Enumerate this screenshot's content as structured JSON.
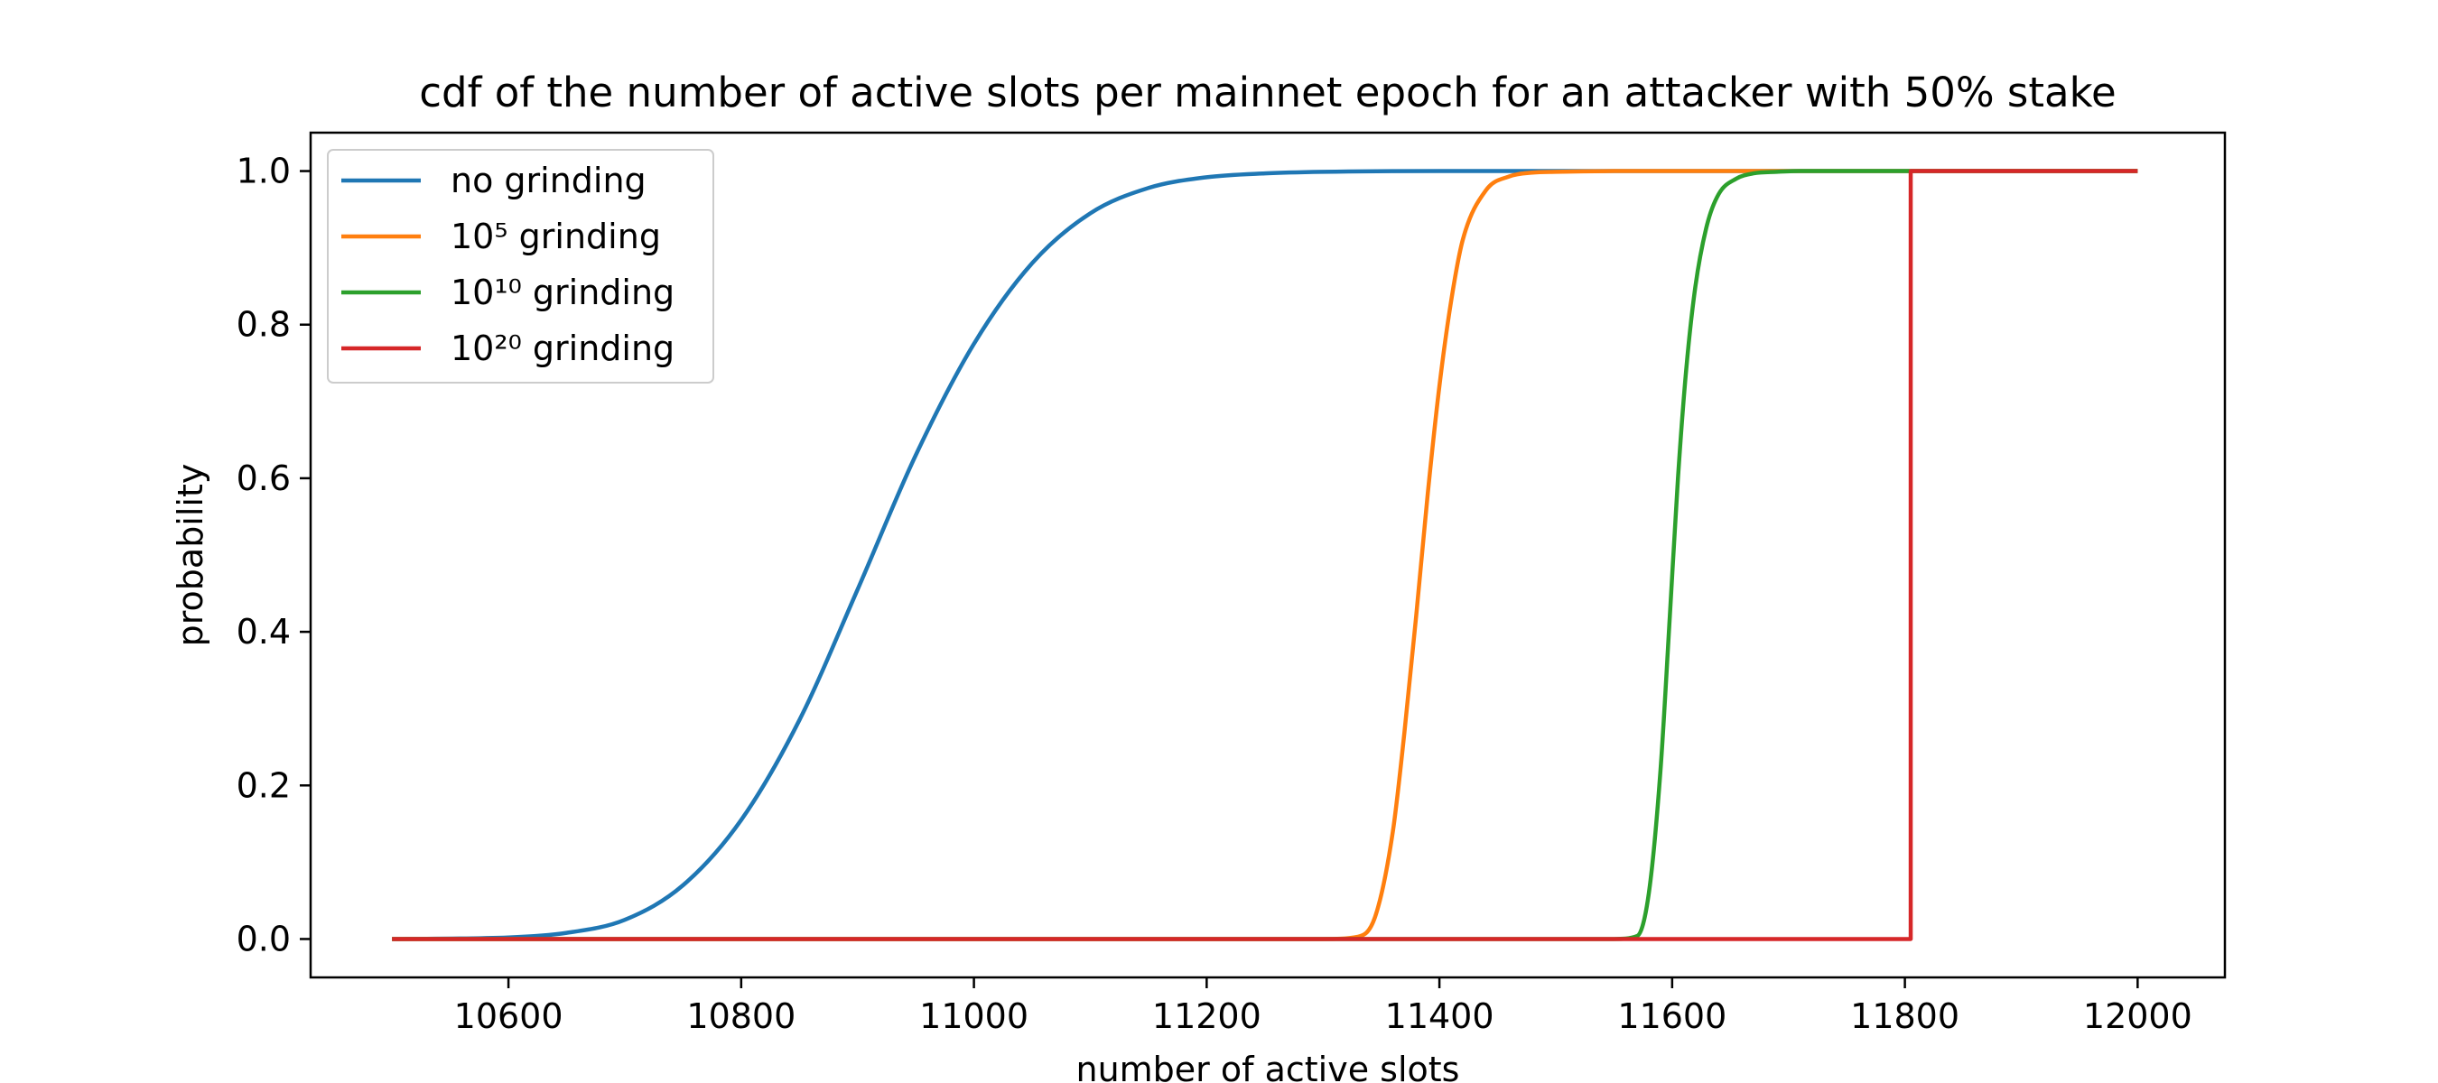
{
  "chart_data": {
    "type": "line",
    "title": "cdf of the number of active slots per mainnet epoch for an attacker with 50% stake",
    "xlabel": "number of active slots",
    "ylabel": "probability",
    "xlim": [
      10430,
      12075
    ],
    "ylim": [
      -0.05,
      1.05
    ],
    "xticks": [
      10600,
      10800,
      11000,
      11200,
      11400,
      11600,
      11800,
      12000
    ],
    "yticks": [
      0.0,
      0.2,
      0.4,
      0.6,
      0.8,
      1.0
    ],
    "xtick_labels": [
      "10600",
      "10800",
      "11000",
      "11200",
      "11400",
      "11600",
      "11800",
      "12000"
    ],
    "ytick_labels": [
      "0.0",
      "0.2",
      "0.4",
      "0.6",
      "0.8",
      "1.0"
    ],
    "grid": false,
    "legend_position": "top-left",
    "series": [
      {
        "name": "no grinding",
        "color": "#1f77b4",
        "x": [
          10500,
          10600,
          10650,
          10700,
          10750,
          10800,
          10850,
          10900,
          10950,
          11000,
          11050,
          11100,
          11150,
          11200,
          11250,
          11300,
          11400,
          11600,
          11800,
          12000
        ],
        "y": [
          0.0,
          0.002,
          0.008,
          0.025,
          0.07,
          0.155,
          0.285,
          0.455,
          0.63,
          0.775,
          0.88,
          0.945,
          0.978,
          0.992,
          0.997,
          0.999,
          1.0,
          1.0,
          1.0,
          1.0
        ]
      },
      {
        "name": "10⁵ grinding",
        "color": "#ff7f0e",
        "x": [
          10500,
          11300,
          11330,
          11345,
          11360,
          11370,
          11380,
          11390,
          11400,
          11410,
          11420,
          11440,
          11460,
          11480,
          11500,
          11550,
          11600,
          11800,
          12000
        ],
        "y": [
          0.0,
          0.0,
          0.003,
          0.03,
          0.14,
          0.27,
          0.42,
          0.58,
          0.72,
          0.83,
          0.91,
          0.975,
          0.993,
          0.998,
          0.999,
          1.0,
          1.0,
          1.0,
          1.0
        ]
      },
      {
        "name": "10¹⁰ grinding",
        "color": "#2ca02c",
        "x": [
          10500,
          11550,
          11570,
          11580,
          11590,
          11598,
          11605,
          11612,
          11620,
          11630,
          11640,
          11655,
          11670,
          11690,
          11710,
          11800,
          12000
        ],
        "y": [
          0.0,
          0.0,
          0.004,
          0.06,
          0.22,
          0.42,
          0.6,
          0.74,
          0.85,
          0.93,
          0.97,
          0.99,
          0.997,
          0.999,
          1.0,
          1.0,
          1.0
        ]
      },
      {
        "name": "10²⁰ grinding",
        "color": "#d62728",
        "x": [
          10500,
          11805,
          11805,
          12000
        ],
        "y": [
          0.0,
          0.0,
          1.0,
          1.0
        ]
      }
    ]
  }
}
